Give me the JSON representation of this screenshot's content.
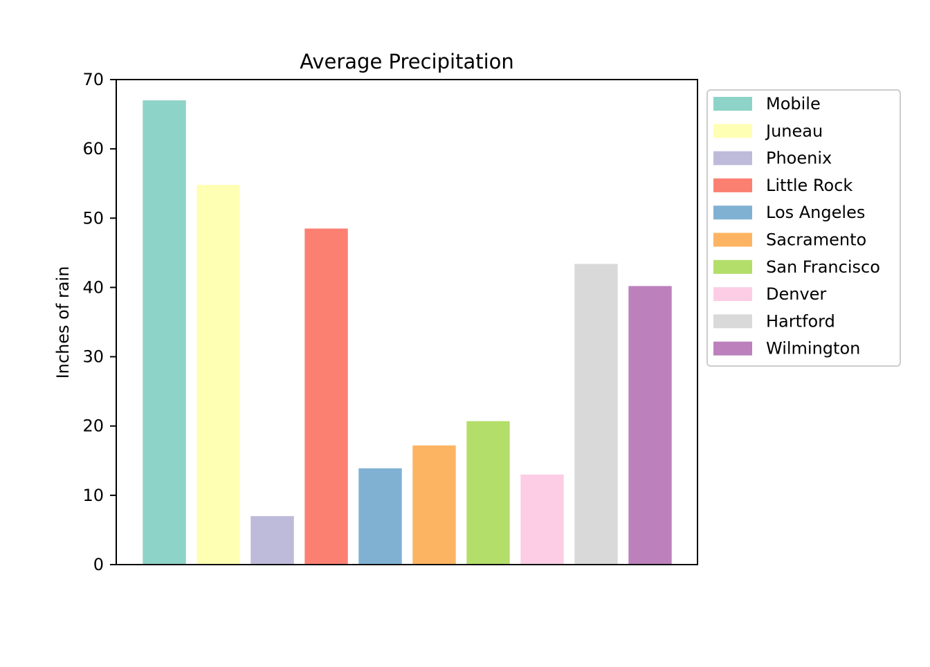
{
  "chart_data": {
    "type": "bar",
    "title": "Average Precipitation",
    "xlabel": "",
    "ylabel": "Inches of rain",
    "ylim": [
      0,
      70
    ],
    "yticks": [
      0,
      10,
      20,
      30,
      40,
      50,
      60,
      70
    ],
    "show_xticks": false,
    "grid": false,
    "legend_position": "outside-right-top",
    "categories": [
      "Mobile",
      "Juneau",
      "Phoenix",
      "Little Rock",
      "Los Angeles",
      "Sacramento",
      "San Francisco",
      "Denver",
      "Hartford",
      "Wilmington"
    ],
    "values": [
      67.0,
      54.8,
      7.0,
      48.5,
      13.9,
      17.2,
      20.7,
      13.0,
      43.4,
      40.2
    ],
    "colors": [
      "#8dd3c7",
      "#ffffb3",
      "#bebada",
      "#fb8072",
      "#80b1d3",
      "#fdb462",
      "#b3de69",
      "#fccde5",
      "#d9d9d9",
      "#bc80bd"
    ]
  }
}
